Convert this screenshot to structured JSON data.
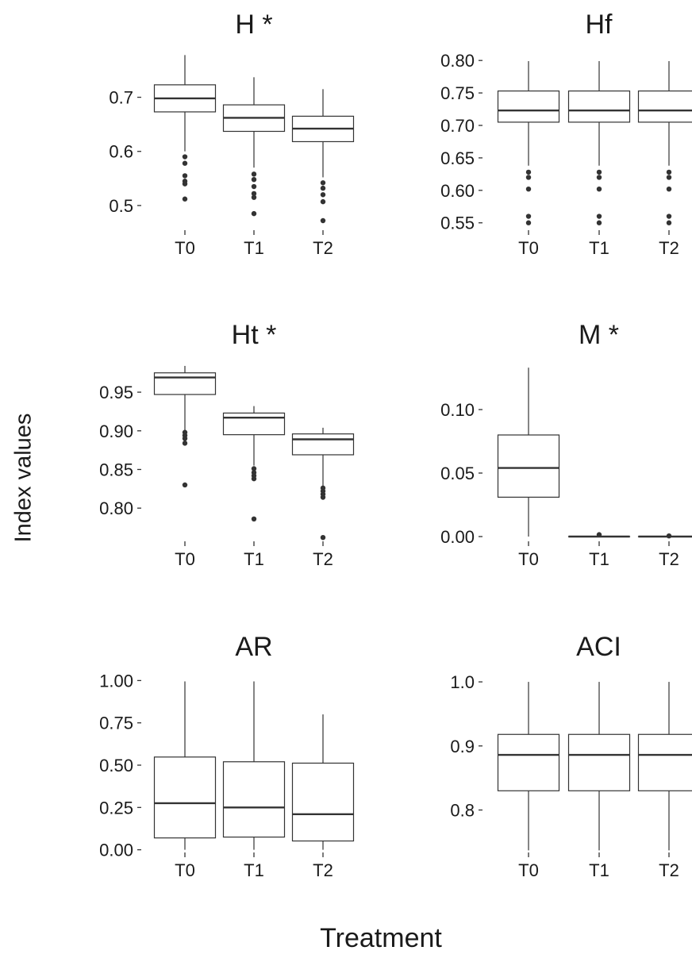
{
  "figure": {
    "ylabel": "Index values",
    "xlabel": "Treatment"
  },
  "chart_data": [
    {
      "type": "boxplot",
      "title": "H *",
      "categories": [
        "T0",
        "T1",
        "T2"
      ],
      "yticks": [
        0.5,
        0.6,
        0.7
      ],
      "ytick_labels": [
        "0.5",
        "0.6",
        "0.7"
      ],
      "ylim": [
        0.45,
        0.78
      ],
      "boxes": [
        {
          "category": "T0",
          "whisker_low": 0.6,
          "q1": 0.673,
          "median": 0.698,
          "q3": 0.723,
          "whisker_high": 0.778,
          "outliers": [
            0.59,
            0.578,
            0.555,
            0.545,
            0.54,
            0.512
          ]
        },
        {
          "category": "T1",
          "whisker_low": 0.57,
          "q1": 0.637,
          "median": 0.662,
          "q3": 0.686,
          "whisker_high": 0.737,
          "outliers": [
            0.558,
            0.548,
            0.535,
            0.522,
            0.515,
            0.485
          ]
        },
        {
          "category": "T2",
          "whisker_low": 0.552,
          "q1": 0.618,
          "median": 0.642,
          "q3": 0.665,
          "whisker_high": 0.715,
          "outliers": [
            0.542,
            0.532,
            0.52,
            0.507,
            0.472
          ]
        }
      ]
    },
    {
      "type": "boxplot",
      "title": "Hf",
      "categories": [
        "T0",
        "T1",
        "T2"
      ],
      "yticks": [
        0.55,
        0.6,
        0.65,
        0.7,
        0.75,
        0.8
      ],
      "ytick_labels": [
        "0.55",
        "0.60",
        "0.65",
        "0.70",
        "0.75",
        "0.80"
      ],
      "ylim": [
        0.535,
        0.81
      ],
      "boxes": [
        {
          "category": "T0",
          "whisker_low": 0.638,
          "q1": 0.705,
          "median": 0.723,
          "q3": 0.753,
          "whisker_high": 0.799,
          "outliers": [
            0.628,
            0.62,
            0.602,
            0.56,
            0.55
          ]
        },
        {
          "category": "T1",
          "whisker_low": 0.638,
          "q1": 0.705,
          "median": 0.723,
          "q3": 0.753,
          "whisker_high": 0.799,
          "outliers": [
            0.628,
            0.62,
            0.602,
            0.56,
            0.55
          ]
        },
        {
          "category": "T2",
          "whisker_low": 0.638,
          "q1": 0.705,
          "median": 0.723,
          "q3": 0.753,
          "whisker_high": 0.799,
          "outliers": [
            0.628,
            0.62,
            0.602,
            0.56,
            0.55
          ]
        }
      ]
    },
    {
      "type": "boxplot",
      "title": "Ht *",
      "categories": [
        "T0",
        "T1",
        "T2"
      ],
      "yticks": [
        0.8,
        0.85,
        0.9,
        0.95
      ],
      "ytick_labels": [
        "0.80",
        "0.85",
        "0.90",
        "0.95"
      ],
      "ylim": [
        0.755,
        0.985
      ],
      "boxes": [
        {
          "category": "T0",
          "whisker_low": 0.9,
          "q1": 0.947,
          "median": 0.969,
          "q3": 0.975,
          "whisker_high": 0.984,
          "outliers": [
            0.898,
            0.894,
            0.89,
            0.884,
            0.83
          ]
        },
        {
          "category": "T1",
          "whisker_low": 0.855,
          "q1": 0.895,
          "median": 0.917,
          "q3": 0.923,
          "whisker_high": 0.932,
          "outliers": [
            0.851,
            0.846,
            0.842,
            0.838,
            0.786
          ]
        },
        {
          "category": "T2",
          "whisker_low": 0.828,
          "q1": 0.869,
          "median": 0.889,
          "q3": 0.896,
          "whisker_high": 0.904,
          "outliers": [
            0.826,
            0.822,
            0.818,
            0.814,
            0.762
          ]
        }
      ]
    },
    {
      "type": "boxplot",
      "title": "M *",
      "categories": [
        "T0",
        "T1",
        "T2"
      ],
      "yticks": [
        0.0,
        0.05,
        0.1
      ],
      "ytick_labels": [
        "0.00",
        "0.05",
        "0.10"
      ],
      "ylim": [
        -0.005,
        0.135
      ],
      "boxes": [
        {
          "category": "T0",
          "whisker_low": 0.0,
          "q1": 0.031,
          "median": 0.054,
          "q3": 0.08,
          "whisker_high": 0.133,
          "outliers": []
        },
        {
          "category": "T1",
          "whisker_low": 0.0,
          "q1": 0.0,
          "median": 0.0,
          "q3": 0.0,
          "whisker_high": 0.0,
          "outliers": [
            0.0015
          ]
        },
        {
          "category": "T2",
          "whisker_low": 0.0,
          "q1": 0.0,
          "median": 0.0,
          "q3": 0.0,
          "whisker_high": 0.0,
          "outliers": [
            0.0005
          ]
        }
      ]
    },
    {
      "type": "boxplot",
      "title": "AR",
      "categories": [
        "T0",
        "T1",
        "T2"
      ],
      "yticks": [
        0.0,
        0.25,
        0.5,
        0.75,
        1.0
      ],
      "ytick_labels": [
        "0.00",
        "0.25",
        "0.50",
        "0.75",
        "1.00"
      ],
      "ylim": [
        -0.03,
        1.03
      ],
      "boxes": [
        {
          "category": "T0",
          "whisker_low": 0.0,
          "q1": 0.07,
          "median": 0.275,
          "q3": 0.548,
          "whisker_high": 0.995,
          "outliers": []
        },
        {
          "category": "T1",
          "whisker_low": 0.0,
          "q1": 0.075,
          "median": 0.25,
          "q3": 0.52,
          "whisker_high": 0.995,
          "outliers": []
        },
        {
          "category": "T2",
          "whisker_low": 0.0,
          "q1": 0.052,
          "median": 0.21,
          "q3": 0.512,
          "whisker_high": 0.8,
          "outliers": []
        }
      ]
    },
    {
      "type": "boxplot",
      "title": "ACI",
      "categories": [
        "T0",
        "T1",
        "T2"
      ],
      "yticks": [
        0.8,
        0.9,
        1.0
      ],
      "ytick_labels": [
        "0.8",
        "0.9",
        "1.0"
      ],
      "ylim": [
        0.73,
        1.01
      ],
      "boxes": [
        {
          "category": "T0",
          "whisker_low": 0.737,
          "q1": 0.83,
          "median": 0.886,
          "q3": 0.918,
          "whisker_high": 1.0,
          "outliers": []
        },
        {
          "category": "T1",
          "whisker_low": 0.737,
          "q1": 0.83,
          "median": 0.886,
          "q3": 0.918,
          "whisker_high": 1.0,
          "outliers": []
        },
        {
          "category": "T2",
          "whisker_low": 0.737,
          "q1": 0.83,
          "median": 0.886,
          "q3": 0.918,
          "whisker_high": 1.0,
          "outliers": []
        }
      ]
    }
  ]
}
